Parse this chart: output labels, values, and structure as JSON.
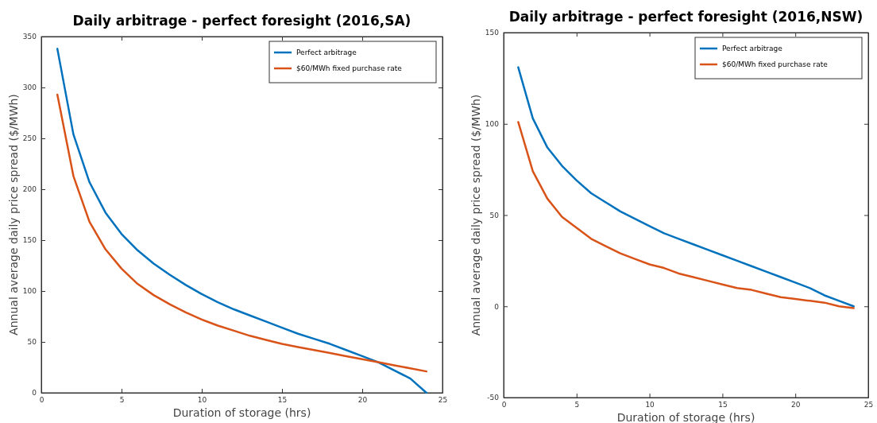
{
  "chart_data": [
    {
      "type": "line",
      "title": "Daily arbitrage - perfect foresight (2016,SA)",
      "xlabel": "Duration of storage (hrs)",
      "ylabel": "Annual average daily price spread ($/MWh)",
      "x": [
        1,
        2,
        3,
        4,
        5,
        6,
        7,
        8,
        9,
        10,
        11,
        12,
        13,
        14,
        15,
        16,
        17,
        18,
        19,
        20,
        21,
        22,
        23,
        24
      ],
      "xlim": [
        0,
        25
      ],
      "xticks": [
        0,
        5,
        10,
        15,
        20,
        25
      ],
      "ylim": [
        0,
        350
      ],
      "yticks": [
        0,
        50,
        100,
        150,
        200,
        250,
        300,
        350
      ],
      "legend": "top right",
      "grid": false,
      "marker": "none",
      "line_style": "solid",
      "series": [
        {
          "name": "Perfect arbitrage",
          "color": "#0072bd",
          "values": [
            338,
            254,
            207,
            177,
            156,
            140,
            127,
            116,
            106,
            97,
            89,
            82,
            76,
            70,
            64,
            58,
            53,
            48,
            42,
            36,
            30,
            22,
            14,
            0
          ]
        },
        {
          "name": "$60/MWh fixed purchase rate",
          "color": "#d95319",
          "values": [
            293,
            213,
            168,
            141,
            122,
            107,
            96,
            87,
            79,
            72,
            66,
            61,
            56,
            52,
            48,
            45,
            42,
            39,
            36,
            33,
            30,
            27,
            24,
            21
          ]
        }
      ]
    },
    {
      "type": "line",
      "title": "Daily arbitrage - perfect foresight (2016,NSW)",
      "xlabel": "Duration of storage (hrs)",
      "ylabel": "Annual average daily price spread ($/MWh)",
      "x": [
        1,
        2,
        3,
        4,
        5,
        6,
        7,
        8,
        9,
        10,
        11,
        12,
        13,
        14,
        15,
        16,
        17,
        18,
        19,
        20,
        21,
        22,
        23,
        24
      ],
      "xlim": [
        0,
        25
      ],
      "xticks": [
        0,
        5,
        10,
        15,
        20,
        25
      ],
      "ylim": [
        -50,
        150
      ],
      "yticks": [
        -50,
        0,
        50,
        100,
        150
      ],
      "legend": "top right",
      "grid": false,
      "marker": "none",
      "line_style": "solid",
      "series": [
        {
          "name": "Perfect arbitrage",
          "color": "#0072bd",
          "values": [
            131,
            103,
            87,
            77,
            69,
            62,
            57,
            52,
            48,
            44,
            40,
            37,
            34,
            31,
            28,
            25,
            22,
            19,
            16,
            13,
            10,
            6,
            3,
            0
          ]
        },
        {
          "name": "$60/MWh fixed purchase rate",
          "color": "#d95319",
          "values": [
            101,
            74,
            59,
            49,
            43,
            37,
            33,
            29,
            26,
            23,
            21,
            18,
            16,
            14,
            12,
            10,
            9,
            7,
            5,
            4,
            3,
            2,
            0,
            -1
          ]
        }
      ]
    }
  ]
}
